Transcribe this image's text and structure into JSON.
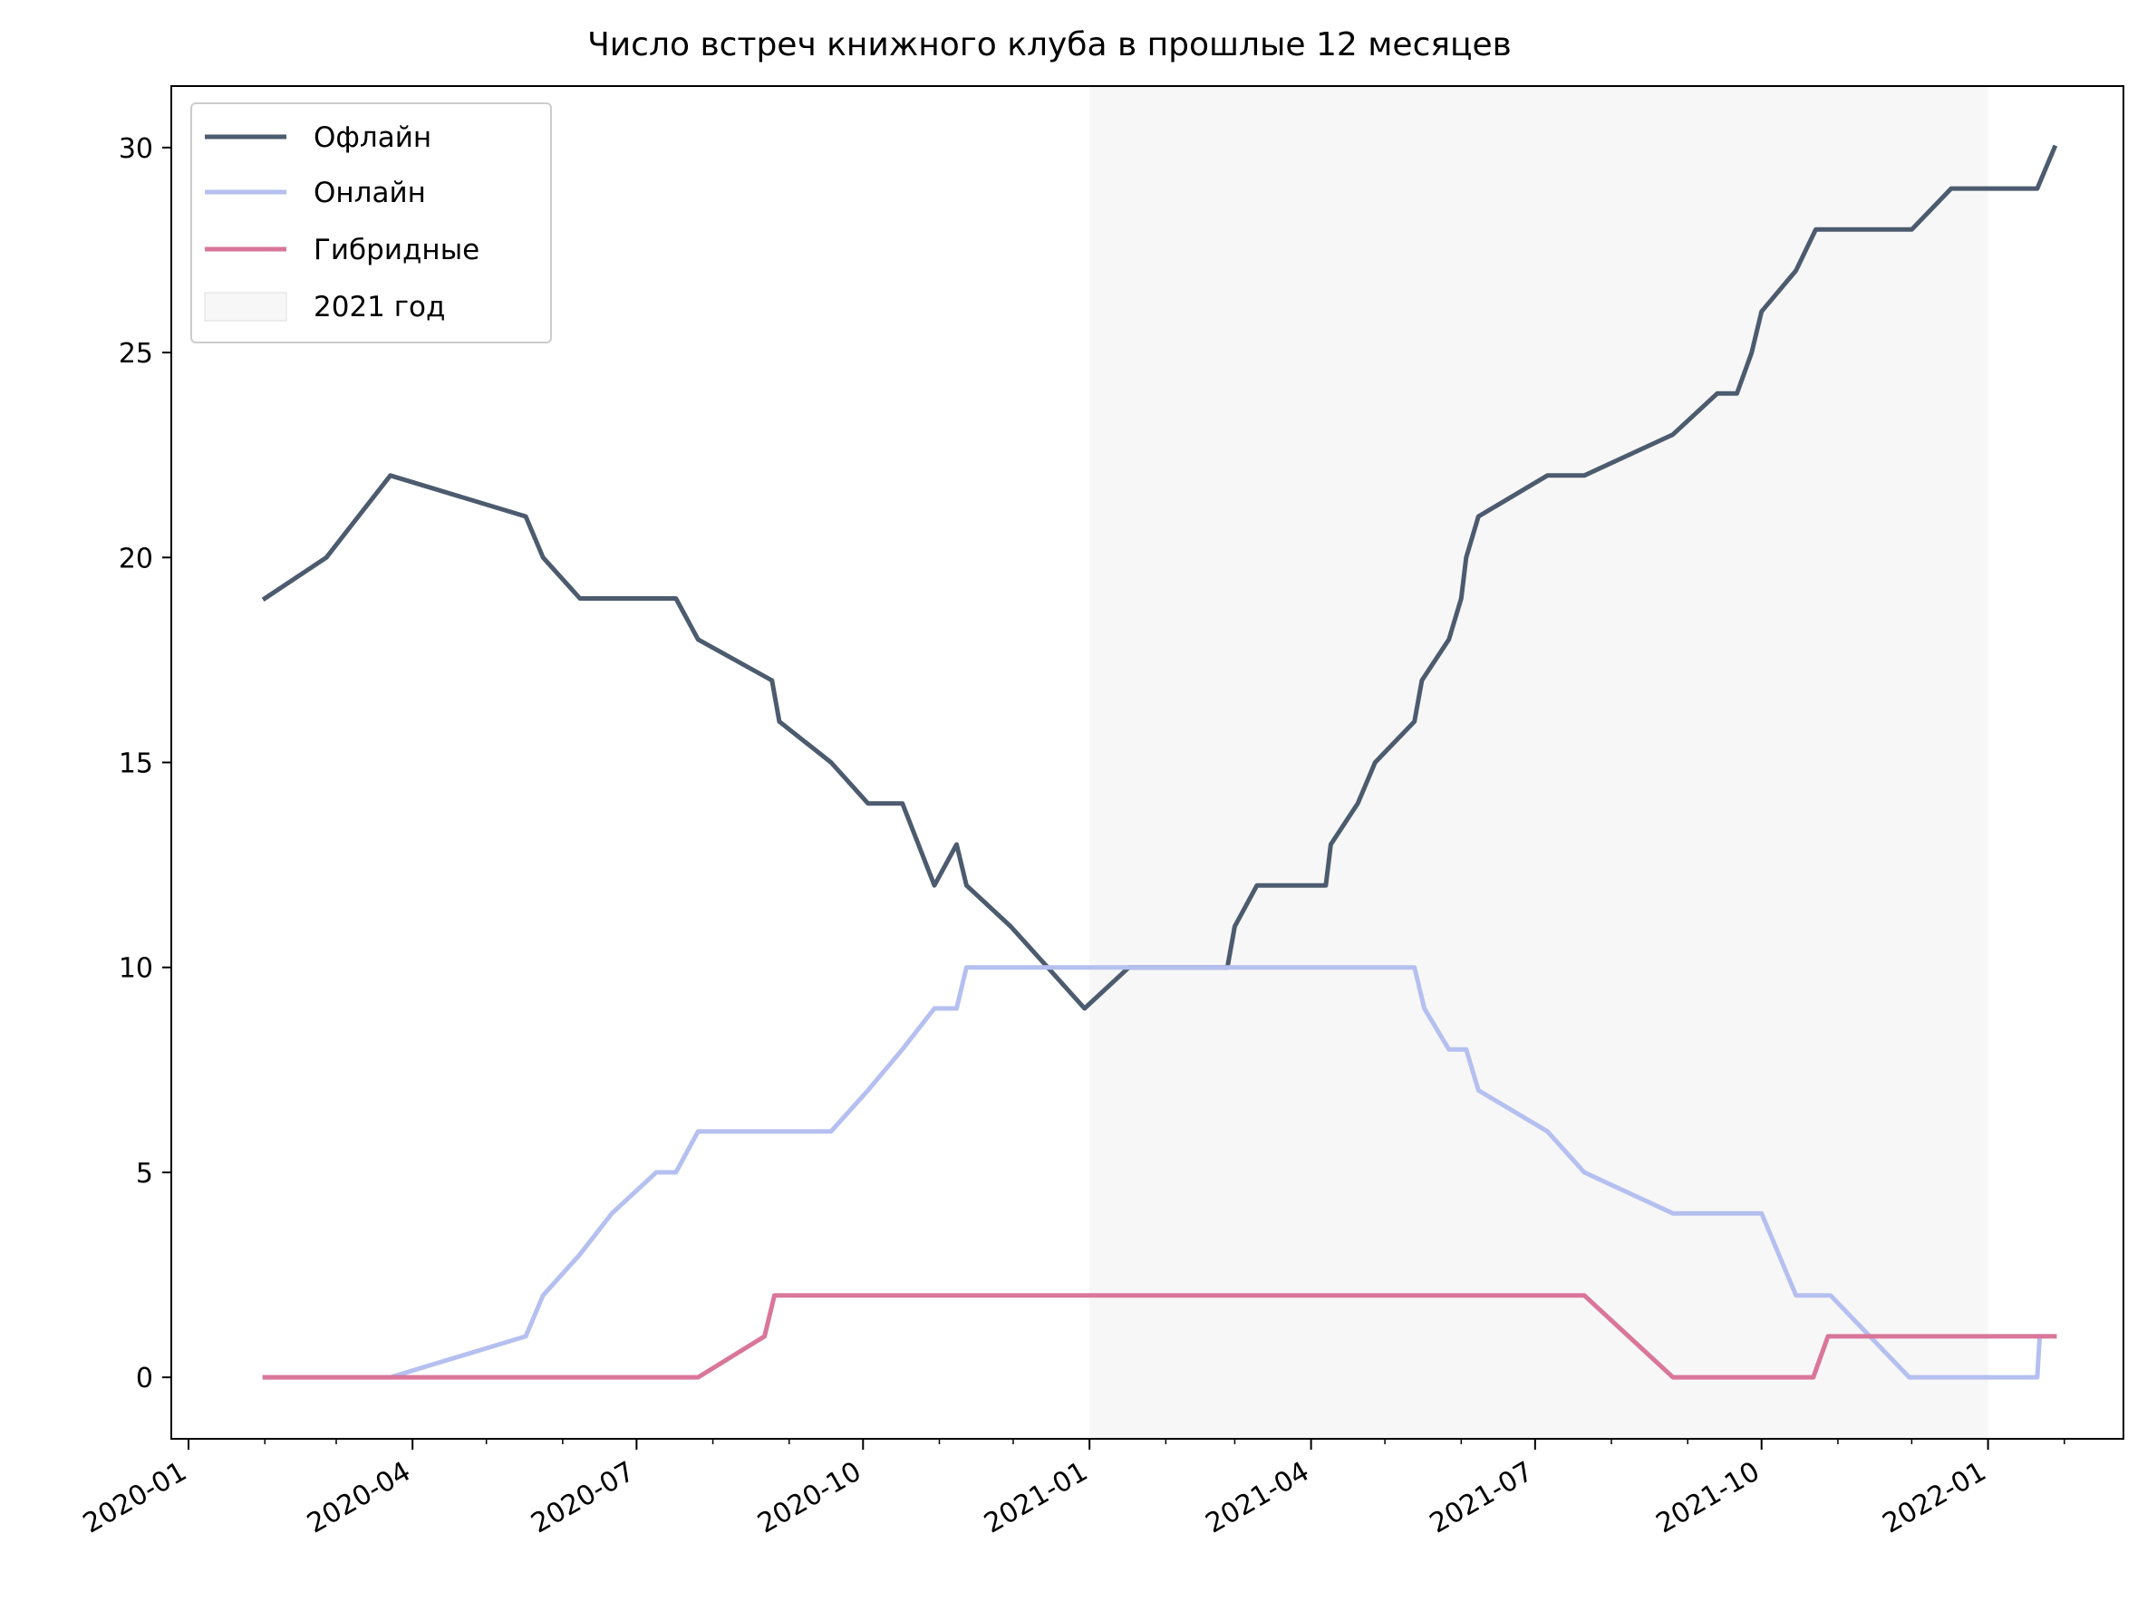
{
  "chart_data": {
    "type": "line",
    "title": "Число встреч книжного клуба в прошлые 12 месяцев",
    "xlabel": "",
    "ylabel": "",
    "xlim": [
      "2019-12-25",
      "2022-02-25"
    ],
    "ylim": [
      -1.5,
      31.5
    ],
    "y_ticks": [
      0,
      5,
      10,
      15,
      20,
      25,
      30
    ],
    "x_ticks": [
      "2020-01",
      "2020-04",
      "2020-07",
      "2020-10",
      "2021-01",
      "2021-04",
      "2021-07",
      "2021-10",
      "2022-01"
    ],
    "grid": false,
    "legend_position": "upper-left",
    "shaded_region": {
      "label": "2021 год",
      "start": "2021-01-01",
      "end": "2022-01-01",
      "color": "#e8e8e8"
    },
    "series": [
      {
        "name": "Офлайн",
        "color": "#4c5b6e",
        "points": [
          [
            "2020-02-01",
            19
          ],
          [
            "2020-02-26",
            20
          ],
          [
            "2020-03-10",
            21
          ],
          [
            "2020-03-23",
            22
          ],
          [
            "2020-05-17",
            21
          ],
          [
            "2020-05-24",
            20
          ],
          [
            "2020-06-08",
            19
          ],
          [
            "2020-07-17",
            19
          ],
          [
            "2020-07-26",
            18
          ],
          [
            "2020-08-25",
            17
          ],
          [
            "2020-08-28",
            16
          ],
          [
            "2020-09-18",
            15
          ],
          [
            "2020-10-03",
            14
          ],
          [
            "2020-10-17",
            14
          ],
          [
            "2020-10-30",
            12
          ],
          [
            "2020-11-08",
            13
          ],
          [
            "2020-11-12",
            12
          ],
          [
            "2020-11-30",
            11
          ],
          [
            "2020-12-15",
            10
          ],
          [
            "2020-12-30",
            9
          ],
          [
            "2021-01-17",
            10
          ],
          [
            "2021-02-26",
            10
          ],
          [
            "2021-03-01",
            11
          ],
          [
            "2021-03-10",
            12
          ],
          [
            "2021-04-07",
            12
          ],
          [
            "2021-04-09",
            13
          ],
          [
            "2021-04-20",
            14
          ],
          [
            "2021-04-27",
            15
          ],
          [
            "2021-05-13",
            16
          ],
          [
            "2021-05-16",
            17
          ],
          [
            "2021-05-27",
            18
          ],
          [
            "2021-06-01",
            19
          ],
          [
            "2021-06-03",
            20
          ],
          [
            "2021-06-08",
            21
          ],
          [
            "2021-07-06",
            22
          ],
          [
            "2021-07-21",
            22
          ],
          [
            "2021-08-26",
            23
          ],
          [
            "2021-09-13",
            24
          ],
          [
            "2021-09-21",
            24
          ],
          [
            "2021-09-27",
            25
          ],
          [
            "2021-10-01",
            26
          ],
          [
            "2021-10-15",
            27
          ],
          [
            "2021-10-23",
            28
          ],
          [
            "2021-12-01",
            28
          ],
          [
            "2021-12-17",
            29
          ],
          [
            "2022-01-21",
            29
          ],
          [
            "2022-01-28",
            30
          ]
        ]
      },
      {
        "name": "Онлайн",
        "color": "#b5c0f0",
        "points": [
          [
            "2020-02-01",
            0
          ],
          [
            "2020-03-23",
            0
          ],
          [
            "2020-05-17",
            1
          ],
          [
            "2020-05-24",
            2
          ],
          [
            "2020-06-08",
            3
          ],
          [
            "2020-06-21",
            4
          ],
          [
            "2020-07-09",
            5
          ],
          [
            "2020-07-17",
            5
          ],
          [
            "2020-07-26",
            6
          ],
          [
            "2020-09-18",
            6
          ],
          [
            "2020-10-03",
            7
          ],
          [
            "2020-10-17",
            8
          ],
          [
            "2020-10-30",
            9
          ],
          [
            "2020-11-08",
            9
          ],
          [
            "2020-11-12",
            10
          ],
          [
            "2021-05-13",
            10
          ],
          [
            "2021-05-17",
            9
          ],
          [
            "2021-05-27",
            8
          ],
          [
            "2021-06-03",
            8
          ],
          [
            "2021-06-08",
            7
          ],
          [
            "2021-07-06",
            6
          ],
          [
            "2021-07-21",
            5
          ],
          [
            "2021-08-26",
            4
          ],
          [
            "2021-10-01",
            4
          ],
          [
            "2021-10-15",
            2
          ],
          [
            "2021-10-29",
            2
          ],
          [
            "2021-11-30",
            0
          ],
          [
            "2022-01-21",
            0
          ],
          [
            "2022-01-22",
            1
          ]
        ]
      },
      {
        "name": "Гибридные",
        "color": "#d9769a",
        "points": [
          [
            "2020-02-01",
            0
          ],
          [
            "2020-07-26",
            0
          ],
          [
            "2020-08-22",
            1
          ],
          [
            "2020-08-26",
            2
          ],
          [
            "2021-07-21",
            2
          ],
          [
            "2021-08-26",
            0
          ],
          [
            "2021-10-22",
            0
          ],
          [
            "2021-10-28",
            1
          ],
          [
            "2022-01-28",
            1
          ]
        ]
      }
    ]
  }
}
